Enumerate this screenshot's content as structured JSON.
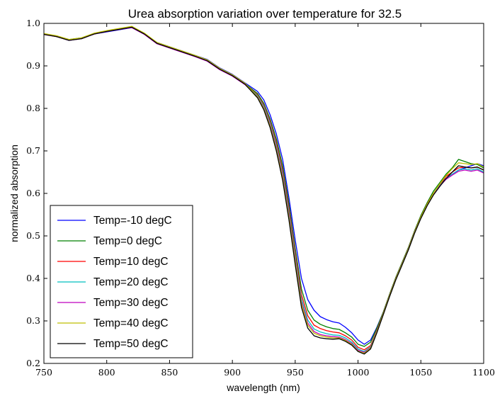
{
  "chart_data": {
    "type": "line",
    "title": "Urea absorption variation over temperature for 32.5",
    "xlabel": "wavelength (nm)",
    "ylabel": "normalized absorption",
    "xlim": [
      750,
      1100
    ],
    "ylim": [
      0.2,
      1.0
    ],
    "xticks": [
      750,
      800,
      850,
      900,
      950,
      1000,
      1050,
      1100
    ],
    "yticks": [
      0.2,
      0.3,
      0.4,
      0.5,
      0.6,
      0.7,
      0.8,
      0.9,
      1.0
    ],
    "xtick_labels": [
      "750",
      "800",
      "850",
      "900",
      "950",
      "1000",
      "1050",
      "1100"
    ],
    "ytick_labels": [
      "0.2",
      "0.3",
      "0.4",
      "0.5",
      "0.6",
      "0.7",
      "0.8",
      "0.9",
      "1.0"
    ],
    "grid": false,
    "legend_position": "bottom-left",
    "x": [
      750,
      760,
      770,
      780,
      790,
      800,
      810,
      820,
      830,
      840,
      850,
      860,
      870,
      880,
      890,
      900,
      910,
      920,
      925,
      930,
      935,
      940,
      945,
      950,
      955,
      960,
      965,
      970,
      975,
      980,
      985,
      990,
      995,
      1000,
      1005,
      1010,
      1015,
      1020,
      1025,
      1030,
      1035,
      1040,
      1045,
      1050,
      1055,
      1060,
      1065,
      1070,
      1075,
      1080,
      1085,
      1090,
      1095,
      1100
    ],
    "series": [
      {
        "name": "Temp=-10 degC",
        "color": "#0000ff",
        "values": [
          0.975,
          0.97,
          0.96,
          0.965,
          0.975,
          0.98,
          0.985,
          0.99,
          0.975,
          0.955,
          0.945,
          0.935,
          0.925,
          0.915,
          0.895,
          0.88,
          0.86,
          0.84,
          0.82,
          0.785,
          0.74,
          0.68,
          0.59,
          0.49,
          0.4,
          0.35,
          0.325,
          0.31,
          0.303,
          0.298,
          0.295,
          0.285,
          0.272,
          0.255,
          0.245,
          0.255,
          0.285,
          0.32,
          0.36,
          0.4,
          0.435,
          0.47,
          0.51,
          0.545,
          0.575,
          0.6,
          0.62,
          0.635,
          0.645,
          0.655,
          0.66,
          0.665,
          0.67,
          0.665
        ]
      },
      {
        "name": "Temp=0 degC",
        "color": "#008000",
        "values": [
          0.975,
          0.97,
          0.962,
          0.966,
          0.976,
          0.982,
          0.987,
          0.992,
          0.976,
          0.954,
          0.944,
          0.934,
          0.924,
          0.913,
          0.893,
          0.878,
          0.858,
          0.835,
          0.812,
          0.775,
          0.728,
          0.665,
          0.575,
          0.47,
          0.375,
          0.325,
          0.302,
          0.292,
          0.286,
          0.282,
          0.28,
          0.272,
          0.262,
          0.245,
          0.24,
          0.25,
          0.283,
          0.32,
          0.362,
          0.402,
          0.437,
          0.472,
          0.512,
          0.548,
          0.578,
          0.605,
          0.625,
          0.645,
          0.66,
          0.68,
          0.675,
          0.67,
          0.668,
          0.66
        ]
      },
      {
        "name": "Temp=10 degC",
        "color": "#ff0000",
        "values": [
          0.974,
          0.969,
          0.961,
          0.965,
          0.975,
          0.981,
          0.986,
          0.991,
          0.975,
          0.953,
          0.943,
          0.933,
          0.923,
          0.912,
          0.892,
          0.877,
          0.857,
          0.832,
          0.808,
          0.77,
          0.72,
          0.655,
          0.565,
          0.46,
          0.362,
          0.312,
          0.29,
          0.282,
          0.277,
          0.274,
          0.272,
          0.265,
          0.255,
          0.238,
          0.232,
          0.242,
          0.278,
          0.318,
          0.36,
          0.4,
          0.435,
          0.47,
          0.51,
          0.545,
          0.575,
          0.6,
          0.62,
          0.64,
          0.65,
          0.66,
          0.662,
          0.66,
          0.662,
          0.655
        ]
      },
      {
        "name": "Temp=20 degC",
        "color": "#00bfbf",
        "values": [
          0.975,
          0.97,
          0.961,
          0.965,
          0.976,
          0.982,
          0.987,
          0.991,
          0.975,
          0.953,
          0.943,
          0.933,
          0.923,
          0.912,
          0.892,
          0.877,
          0.857,
          0.83,
          0.805,
          0.766,
          0.714,
          0.648,
          0.557,
          0.452,
          0.352,
          0.302,
          0.281,
          0.274,
          0.27,
          0.267,
          0.266,
          0.26,
          0.25,
          0.234,
          0.228,
          0.239,
          0.276,
          0.317,
          0.359,
          0.399,
          0.434,
          0.469,
          0.509,
          0.544,
          0.574,
          0.598,
          0.618,
          0.635,
          0.645,
          0.655,
          0.658,
          0.655,
          0.658,
          0.65
        ]
      },
      {
        "name": "Temp=30 degC",
        "color": "#bf00bf",
        "values": [
          0.974,
          0.969,
          0.96,
          0.964,
          0.975,
          0.981,
          0.986,
          0.99,
          0.974,
          0.952,
          0.942,
          0.932,
          0.922,
          0.911,
          0.891,
          0.876,
          0.856,
          0.828,
          0.802,
          0.762,
          0.709,
          0.642,
          0.55,
          0.445,
          0.345,
          0.295,
          0.275,
          0.268,
          0.265,
          0.263,
          0.262,
          0.256,
          0.247,
          0.231,
          0.226,
          0.237,
          0.275,
          0.316,
          0.358,
          0.398,
          0.433,
          0.468,
          0.508,
          0.543,
          0.573,
          0.597,
          0.617,
          0.633,
          0.643,
          0.652,
          0.655,
          0.652,
          0.655,
          0.648
        ]
      },
      {
        "name": "Temp=40 degC",
        "color": "#bfbf00",
        "values": [
          0.976,
          0.971,
          0.962,
          0.966,
          0.977,
          0.983,
          0.988,
          0.993,
          0.977,
          0.955,
          0.945,
          0.935,
          0.925,
          0.914,
          0.894,
          0.879,
          0.859,
          0.827,
          0.8,
          0.759,
          0.705,
          0.637,
          0.545,
          0.44,
          0.34,
          0.29,
          0.271,
          0.265,
          0.262,
          0.26,
          0.26,
          0.254,
          0.245,
          0.229,
          0.224,
          0.236,
          0.274,
          0.316,
          0.358,
          0.398,
          0.433,
          0.468,
          0.508,
          0.544,
          0.574,
          0.6,
          0.622,
          0.642,
          0.658,
          0.672,
          0.67,
          0.668,
          0.67,
          0.662
        ]
      },
      {
        "name": "Temp=50 degC",
        "color": "#000000",
        "values": [
          0.974,
          0.969,
          0.96,
          0.964,
          0.975,
          0.981,
          0.986,
          0.991,
          0.975,
          0.953,
          0.943,
          0.933,
          0.923,
          0.912,
          0.892,
          0.877,
          0.857,
          0.825,
          0.797,
          0.755,
          0.7,
          0.631,
          0.538,
          0.432,
          0.332,
          0.283,
          0.265,
          0.26,
          0.258,
          0.257,
          0.258,
          0.252,
          0.243,
          0.228,
          0.222,
          0.234,
          0.272,
          0.314,
          0.356,
          0.396,
          0.431,
          0.466,
          0.506,
          0.541,
          0.571,
          0.596,
          0.616,
          0.635,
          0.65,
          0.665,
          0.662,
          0.66,
          0.662,
          0.655
        ]
      }
    ]
  }
}
